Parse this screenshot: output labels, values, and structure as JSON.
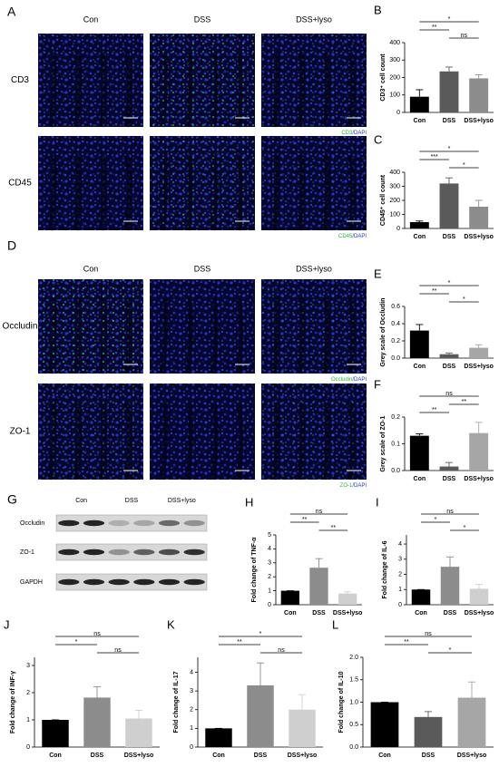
{
  "panels": [
    {
      "panel": "A",
      "columns": [
        "Con",
        "DSS",
        "DSS+lyso"
      ],
      "scale_bar": "50um",
      "rows": [
        {
          "label": "CD3",
          "stain": "CD3",
          "counterstain": "/DAPI"
        },
        {
          "label": "CD45",
          "stain": "CD45",
          "counterstain": "/DAPI"
        }
      ]
    },
    {
      "panel": "D",
      "columns": [
        "Con",
        "DSS",
        "DSS+lyso"
      ],
      "scale_bar": "50um",
      "rows": [
        {
          "label": "Occludin",
          "stain": "Occludin",
          "counterstain": "/DAPI"
        },
        {
          "label": "ZO-1",
          "stain": "ZO-1",
          "counterstain": "/DAPI"
        }
      ]
    },
    {
      "panel": "G",
      "columns": [
        "Con",
        "DSS",
        "DSS+lyso"
      ],
      "rows": [
        "Occludin",
        "ZO-1",
        "GAPDH"
      ]
    }
  ],
  "chart_data": [
    {
      "type": "bar",
      "panel": "B",
      "ylabel": "CD3⁺ cell count",
      "categories": [
        "Con",
        "DSS",
        "DSS+lyso"
      ],
      "values": [
        90,
        235,
        195
      ],
      "errors": [
        40,
        25,
        20
      ],
      "colors": [
        "#000000",
        "#5a5a5a",
        "#8c8c8c"
      ],
      "ylim": [
        0,
        400
      ],
      "yticks": [
        0,
        100,
        200,
        300,
        400
      ],
      "annotations": [
        {
          "pair": [
            "Con",
            "DSS+lyso"
          ],
          "label": "*"
        },
        {
          "pair": [
            "Con",
            "DSS"
          ],
          "label": "**"
        },
        {
          "pair": [
            "DSS",
            "DSS+lyso"
          ],
          "label": "ns"
        }
      ]
    },
    {
      "type": "bar",
      "panel": "C",
      "ylabel": "CD45⁺ cell count",
      "categories": [
        "Con",
        "DSS",
        "DSS+lyso"
      ],
      "values": [
        45,
        320,
        155
      ],
      "errors": [
        8,
        40,
        45
      ],
      "colors": [
        "#000000",
        "#5a5a5a",
        "#8c8c8c"
      ],
      "ylim": [
        0,
        400
      ],
      "yticks": [
        0,
        100,
        200,
        300,
        400
      ],
      "annotations": [
        {
          "pair": [
            "Con",
            "DSS+lyso"
          ],
          "label": "*"
        },
        {
          "pair": [
            "Con",
            "DSS"
          ],
          "label": "***"
        },
        {
          "pair": [
            "DSS",
            "DSS+lyso"
          ],
          "label": "*"
        }
      ]
    },
    {
      "type": "bar",
      "panel": "E",
      "ylabel": "Grey scale of Occludin",
      "categories": [
        "Con",
        "DSS",
        "DSS+lyso"
      ],
      "values": [
        0.32,
        0.045,
        0.12
      ],
      "errors": [
        0.07,
        0.015,
        0.035
      ],
      "colors": [
        "#000000",
        "#5a5a5a",
        "#a6a6a6"
      ],
      "ylim": [
        0,
        0.6
      ],
      "yticks": [
        {
          "value": 0,
          "label": "0.0"
        },
        0.2,
        0.4,
        0.6
      ],
      "annotations": [
        {
          "pair": [
            "Con",
            "DSS+lyso"
          ],
          "label": "*"
        },
        {
          "pair": [
            "Con",
            "DSS"
          ],
          "label": "**"
        },
        {
          "pair": [
            "DSS",
            "DSS+lyso"
          ],
          "label": "*"
        }
      ]
    },
    {
      "type": "bar",
      "panel": "F",
      "ylabel": "Grey scale of ZO-1",
      "categories": [
        "Con",
        "DSS",
        "DSS+lyso"
      ],
      "values": [
        0.13,
        0.015,
        0.14
      ],
      "errors": [
        0.007,
        0.015,
        0.04
      ],
      "colors": [
        "#000000",
        "#5a5a5a",
        "#a6a6a6"
      ],
      "ylim": [
        0,
        0.2
      ],
      "yticks": [
        {
          "value": 0,
          "label": "0.0"
        },
        0.1,
        0.2
      ],
      "annotations": [
        {
          "pair": [
            "Con",
            "DSS+lyso"
          ],
          "label": "ns"
        },
        {
          "pair": [
            "DSS",
            "DSS+lyso"
          ],
          "label": "**"
        },
        {
          "pair": [
            "Con",
            "DSS"
          ],
          "label": "**"
        }
      ]
    },
    {
      "type": "bar",
      "panel": "H",
      "ylabel": "Fold change of TNF-α",
      "categories": [
        "Con",
        "DSS",
        "DSS+lyso"
      ],
      "values": [
        1,
        2.65,
        0.8
      ],
      "errors": [
        0,
        0.65,
        0.12
      ],
      "colors": [
        "#000000",
        "#8c8c8c",
        "#cfcfcf"
      ],
      "ylim": [
        0,
        5
      ],
      "yticks": [
        0,
        1,
        2,
        3,
        4,
        5
      ],
      "annotations": [
        {
          "pair": [
            "Con",
            "DSS+lyso"
          ],
          "label": "ns"
        },
        {
          "pair": [
            "Con",
            "DSS"
          ],
          "label": "**"
        },
        {
          "pair": [
            "DSS",
            "DSS+lyso"
          ],
          "label": "**"
        }
      ]
    },
    {
      "type": "bar",
      "panel": "I",
      "ylabel": "Fold change of IL-6",
      "categories": [
        "Con",
        "DSS",
        "DSS+lyso"
      ],
      "values": [
        1,
        2.5,
        1.05
      ],
      "errors": [
        0,
        0.65,
        0.3
      ],
      "colors": [
        "#000000",
        "#8c8c8c",
        "#cfcfcf"
      ],
      "ylim": [
        0,
        4.6
      ],
      "yticks": [
        0,
        1,
        2,
        3,
        4
      ],
      "annotations": [
        {
          "pair": [
            "Con",
            "DSS+lyso"
          ],
          "label": "ns"
        },
        {
          "pair": [
            "Con",
            "DSS"
          ],
          "label": "*"
        },
        {
          "pair": [
            "DSS",
            "DSS+lyso"
          ],
          "label": "*"
        }
      ]
    },
    {
      "type": "bar",
      "panel": "J",
      "ylabel": "Fold change of INF-γ",
      "categories": [
        "Con",
        "DSS",
        "DSS+lyso"
      ],
      "values": [
        1,
        1.82,
        1.05
      ],
      "errors": [
        0,
        0.4,
        0.3
      ],
      "colors": [
        "#000000",
        "#8c8c8c",
        "#cfcfcf"
      ],
      "ylim": [
        0,
        3.3
      ],
      "yticks": [
        0,
        1,
        2,
        3
      ],
      "annotations": [
        {
          "pair": [
            "Con",
            "DSS+lyso"
          ],
          "label": "ns"
        },
        {
          "pair": [
            "Con",
            "DSS"
          ],
          "label": "*"
        },
        {
          "pair": [
            "DSS",
            "DSS+lyso"
          ],
          "label": "ns"
        }
      ]
    },
    {
      "type": "bar",
      "panel": "K",
      "ylabel": "Fold change of IL-17",
      "categories": [
        "Con",
        "DSS",
        "DSS+lyso"
      ],
      "values": [
        1,
        3.3,
        2.0
      ],
      "errors": [
        0,
        1.2,
        0.8
      ],
      "colors": [
        "#000000",
        "#8c8c8c",
        "#cfcfcf"
      ],
      "ylim": [
        0,
        4.8
      ],
      "yticks": [
        0,
        1,
        2,
        3,
        4
      ],
      "annotations": [
        {
          "pair": [
            "Con",
            "DSS+lyso"
          ],
          "label": "*"
        },
        {
          "pair": [
            "Con",
            "DSS"
          ],
          "label": "**"
        },
        {
          "pair": [
            "DSS",
            "DSS+lyso"
          ],
          "label": "ns"
        }
      ]
    },
    {
      "type": "bar",
      "panel": "L",
      "ylabel": "Fold change of IL-10",
      "categories": [
        "Con",
        "DSS",
        "DSS+lyso"
      ],
      "values": [
        1.0,
        0.67,
        1.1
      ],
      "errors": [
        0,
        0.12,
        0.35
      ],
      "colors": [
        "#000000",
        "#5a5a5a",
        "#a6a6a6"
      ],
      "ylim": [
        0,
        2.0
      ],
      "yticks": [
        {
          "value": 0,
          "label": "0.0"
        },
        0.5,
        {
          "value": 1,
          "label": "1.0"
        },
        1.5,
        {
          "value": 2,
          "label": "2.0"
        }
      ],
      "annotations": [
        {
          "pair": [
            "Con",
            "DSS+lyso"
          ],
          "label": "ns"
        },
        {
          "pair": [
            "Con",
            "DSS"
          ],
          "label": "**"
        },
        {
          "pair": [
            "DSS",
            "DSS+lyso"
          ],
          "label": "*"
        }
      ]
    }
  ]
}
